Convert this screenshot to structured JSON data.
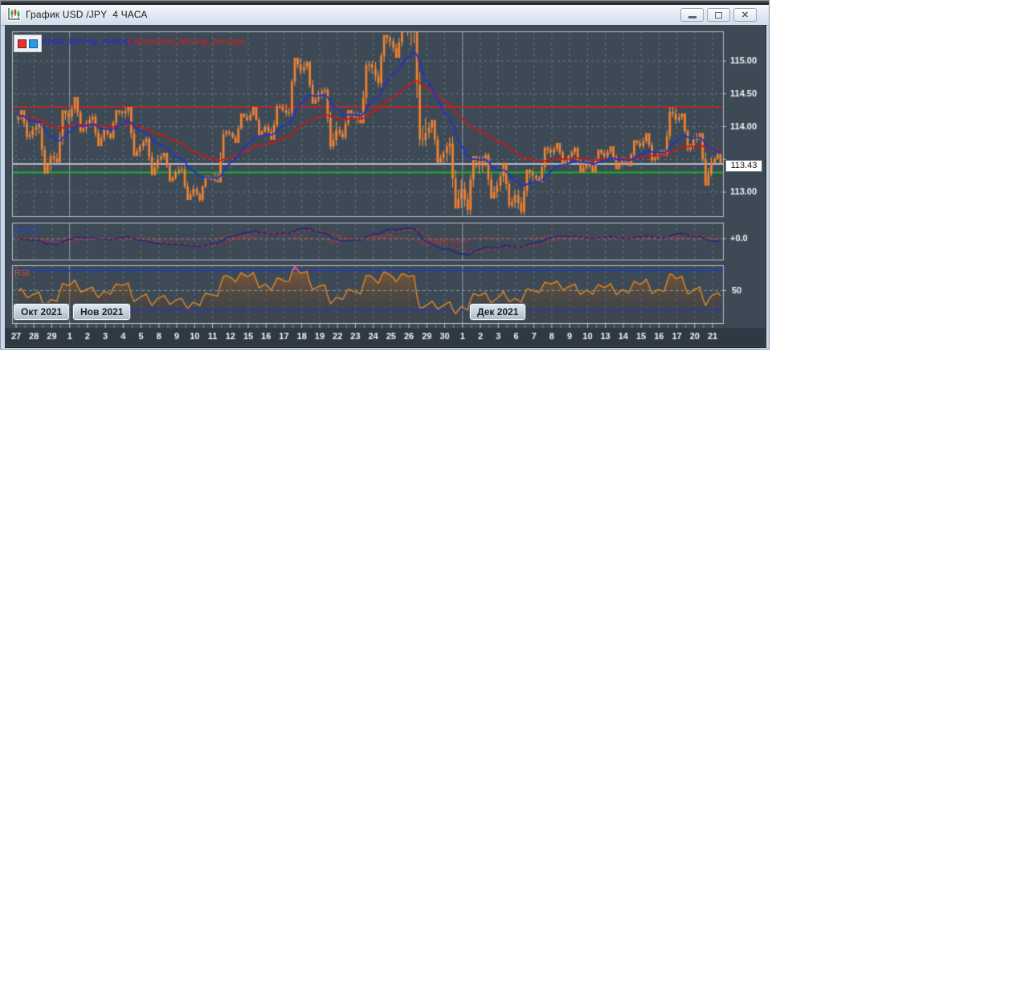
{
  "window": {
    "title": "График USD /JPY  4 ЧАСА",
    "controls": {
      "close_glyph": "✕"
    }
  },
  "legend": {
    "ma_fast_label": "Exponential_Moving_Average",
    "ma_slow_label": "Exponential_Moving_Average"
  },
  "panels": {
    "macd_label": "MACD",
    "rsi_label": "RSI"
  },
  "price_axis": {
    "current": "113.43",
    "current_value": 113.43
  },
  "month_buttons": [
    {
      "label": "Окт 2021"
    },
    {
      "label": "Нов 2021"
    },
    {
      "label": "Дек 2021"
    }
  ],
  "chart_data": {
    "type": "candlestick",
    "symbol": "USD/JPY",
    "timeframe": "4h",
    "x_labels": [
      "27",
      "28",
      "29",
      "1",
      "2",
      "3",
      "4",
      "5",
      "8",
      "9",
      "10",
      "11",
      "12",
      "15",
      "16",
      "17",
      "18",
      "19",
      "22",
      "23",
      "24",
      "25",
      "26",
      "29",
      "30",
      "1",
      "2",
      "3",
      "6",
      "7",
      "8",
      "9",
      "10",
      "13",
      "14",
      "15",
      "16",
      "17",
      "20",
      "21"
    ],
    "month_separators": [
      3,
      25
    ],
    "candles_per_day": 6,
    "last_day_candles": 3,
    "daily_ohlc": [
      [
        114.1,
        114.25,
        113.8,
        113.95
      ],
      [
        113.95,
        114.05,
        113.28,
        113.55
      ],
      [
        113.55,
        114.25,
        113.45,
        114.15
      ],
      [
        114.15,
        114.45,
        113.9,
        114.05
      ],
      [
        114.05,
        114.2,
        113.7,
        113.95
      ],
      [
        113.95,
        114.25,
        113.8,
        114.2
      ],
      [
        114.2,
        114.3,
        113.55,
        113.7
      ],
      [
        113.7,
        113.85,
        113.25,
        113.5
      ],
      [
        113.5,
        113.6,
        113.15,
        113.3
      ],
      [
        113.3,
        113.4,
        112.88,
        113.05
      ],
      [
        113.05,
        113.25,
        112.85,
        113.2
      ],
      [
        113.2,
        113.95,
        113.15,
        113.9
      ],
      [
        113.9,
        114.2,
        113.75,
        114.1
      ],
      [
        114.1,
        114.3,
        113.85,
        114.0
      ],
      [
        114.0,
        114.35,
        113.8,
        114.25
      ],
      [
        114.25,
        115.05,
        114.15,
        114.85
      ],
      [
        114.85,
        115.0,
        114.35,
        114.5
      ],
      [
        114.5,
        114.6,
        113.65,
        113.95
      ],
      [
        113.95,
        114.25,
        113.8,
        114.15
      ],
      [
        114.15,
        115.0,
        114.05,
        114.9
      ],
      [
        114.9,
        115.4,
        114.6,
        115.3
      ],
      [
        115.3,
        115.6,
        115.05,
        115.45
      ],
      [
        115.45,
        115.55,
        113.7,
        113.9
      ],
      [
        113.9,
        114.1,
        113.45,
        113.6
      ],
      [
        113.6,
        113.85,
        112.75,
        113.05
      ],
      [
        113.05,
        113.55,
        112.65,
        113.4
      ],
      [
        113.4,
        113.6,
        112.9,
        113.1
      ],
      [
        113.1,
        113.45,
        112.75,
        112.95
      ],
      [
        112.95,
        113.35,
        112.65,
        113.25
      ],
      [
        113.25,
        113.7,
        113.15,
        113.6
      ],
      [
        113.6,
        113.75,
        113.4,
        113.55
      ],
      [
        113.55,
        113.7,
        113.3,
        113.45
      ],
      [
        113.45,
        113.65,
        113.3,
        113.55
      ],
      [
        113.55,
        113.7,
        113.35,
        113.5
      ],
      [
        113.5,
        113.8,
        113.4,
        113.7
      ],
      [
        113.7,
        113.9,
        113.45,
        113.6
      ],
      [
        113.6,
        114.3,
        113.55,
        114.1
      ],
      [
        114.1,
        114.2,
        113.6,
        113.8
      ],
      [
        113.8,
        113.9,
        113.1,
        113.45
      ],
      [
        113.45,
        113.6,
        113.3,
        113.43
      ]
    ],
    "levels": {
      "resistance": 114.3,
      "support": 113.3,
      "current": 113.43
    },
    "grid_prices": [
      115.0,
      114.5,
      114.0,
      113.5,
      113.0
    ],
    "price_axis": [
      {
        "v": 115.0,
        "t": "115.00"
      },
      {
        "v": 114.5,
        "t": "114.50"
      },
      {
        "v": 114.0,
        "t": "114.00"
      },
      {
        "v": 113.0,
        "t": "113.00"
      }
    ],
    "macd_axis_label": "+0.0",
    "rsi_axis_label": "50",
    "main_range": [
      112.63,
      115.46
    ],
    "indicators": {
      "ema_fast": 18,
      "ema_slow": 48,
      "macd_fast": 12,
      "macd_slow": 26,
      "macd_signal": 9,
      "rsi_period": 14,
      "overbought": 70,
      "oversold": 30,
      "midline": 50
    }
  },
  "colors": {
    "candle": "#f08030",
    "candle_wick": "#ff9a45",
    "ema_fast": "#2233cc",
    "ema_slow": "#cc1818",
    "resistance": "#d42020",
    "support": "#18b428",
    "current": "#dde2e6",
    "macd_line": "#1e2a88",
    "macd_signal": "#e02020",
    "macd_hist": "#d83030",
    "rsi_line": "#e08828",
    "rsi_over": "#f030f0",
    "rsi_under": "#22c040",
    "rsi_bands": "#2238cc",
    "grid": "rgba(139,154,167,0.55)",
    "separator": "rgba(160,172,188,0.75)",
    "panel_border": "#b9c2ca",
    "axis_text": "#eef2f5"
  }
}
